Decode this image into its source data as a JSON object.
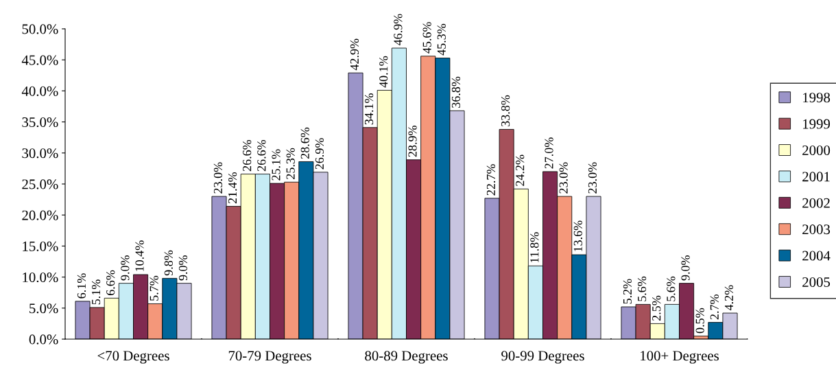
{
  "chart_data": {
    "type": "bar",
    "categories": [
      "<70 Degrees",
      "70-79 Degrees",
      "80-89 Degrees",
      "90-99 Degrees",
      "100+ Degrees"
    ],
    "ylim": [
      0,
      50
    ],
    "yticks": [
      {
        "value": 0,
        "label": "0.0%"
      },
      {
        "value": 5,
        "label": "5.0%"
      },
      {
        "value": 10,
        "label": "10.0%"
      },
      {
        "value": 15,
        "label": "15.0%"
      },
      {
        "value": 20,
        "label": "20.0%"
      },
      {
        "value": 25,
        "label": "25.0%"
      },
      {
        "value": 30,
        "label": "30.0%"
      },
      {
        "value": 35,
        "label": "35.0%"
      },
      {
        "value": 40,
        "label": "40.0%"
      },
      {
        "value": 45,
        "label": "45.0%"
      },
      {
        "value": 50,
        "label": "50.0%"
      }
    ],
    "grid": false,
    "legend": "right",
    "series": [
      {
        "name": "1998",
        "color": "#9b94c8",
        "values": [
          6.1,
          23.0,
          42.9,
          22.7,
          5.2
        ],
        "value_labels": [
          "6.1%",
          "23.0%",
          "42.9%",
          "22.7%",
          "5.2%"
        ]
      },
      {
        "name": "1999",
        "color": "#a5505a",
        "values": [
          5.1,
          21.4,
          34.1,
          33.8,
          5.6
        ],
        "value_labels": [
          "5.1%",
          "21.4%",
          "34.1%",
          "33.8%",
          "5.6%"
        ]
      },
      {
        "name": "2000",
        "color": "#ffffcc",
        "values": [
          6.6,
          26.6,
          40.1,
          24.2,
          2.5
        ],
        "value_labels": [
          "6.6%",
          "26.6%",
          "40.1%",
          "24.2%",
          "2.5%"
        ]
      },
      {
        "name": "2001",
        "color": "#c6ecf5",
        "values": [
          9.0,
          26.6,
          46.9,
          11.8,
          5.6
        ],
        "value_labels": [
          "9.0%",
          "26.6%",
          "46.9%",
          "11.8%",
          "5.6%"
        ]
      },
      {
        "name": "2002",
        "color": "#7f2a50",
        "values": [
          10.4,
          25.1,
          28.9,
          27.0,
          9.0
        ],
        "value_labels": [
          "10.4%",
          "25.1%",
          "28.9%",
          "27.0%",
          "9.0%"
        ]
      },
      {
        "name": "2003",
        "color": "#f4977a",
        "values": [
          5.7,
          25.3,
          45.6,
          23.0,
          0.5
        ],
        "value_labels": [
          "5.7%",
          "25.3%",
          "45.6%",
          "23.0%",
          "0.5%"
        ]
      },
      {
        "name": "2004",
        "color": "#00669a",
        "values": [
          9.8,
          28.6,
          45.3,
          13.6,
          2.7
        ],
        "value_labels": [
          "9.8%",
          "28.6%",
          "45.3%",
          "13.6%",
          "2.7%"
        ]
      },
      {
        "name": "2005",
        "color": "#c8c4e0",
        "values": [
          9.0,
          26.9,
          36.8,
          23.0,
          4.2
        ],
        "value_labels": [
          "9.0%",
          "26.9%",
          "36.8%",
          "23.0%",
          "4.2%"
        ]
      }
    ]
  }
}
